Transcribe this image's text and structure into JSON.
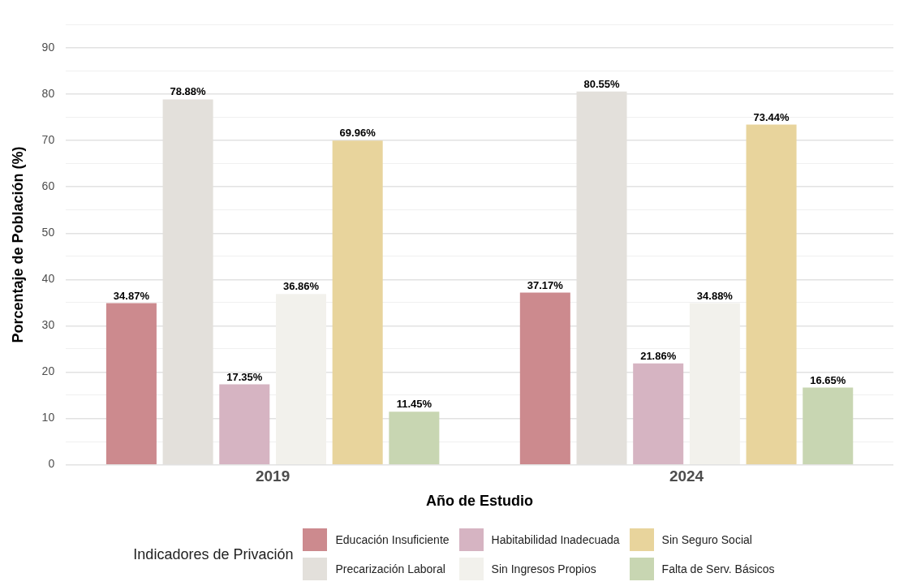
{
  "chart_data": {
    "type": "bar",
    "xlabel": "Año de Estudio",
    "ylabel": "Porcentaje de Población (%)",
    "legend_title": "Indicadores de Privación",
    "categories": [
      "2019",
      "2024"
    ],
    "series": [
      {
        "name": "Educación Insuficiente",
        "color": "#cc8a8e",
        "values": [
          34.87,
          37.17
        ],
        "value_labels": [
          "34.87%",
          "37.17%"
        ]
      },
      {
        "name": "Precarización Laboral",
        "color": "#e3e0db",
        "values": [
          78.88,
          80.55
        ],
        "value_labels": [
          "78.88%",
          "80.55%"
        ]
      },
      {
        "name": "Habitabilidad Inadecuada",
        "color": "#d6b4c2",
        "values": [
          17.35,
          21.86
        ],
        "value_labels": [
          "17.35%",
          "21.86%"
        ]
      },
      {
        "name": "Sin Ingresos Propios",
        "color": "#f2f1ec",
        "values": [
          36.86,
          34.88
        ],
        "value_labels": [
          "36.86%",
          "34.88%"
        ]
      },
      {
        "name": "Sin Seguro Social",
        "color": "#e8d49c",
        "values": [
          69.96,
          73.44
        ],
        "value_labels": [
          "69.96%",
          "73.44%"
        ]
      },
      {
        "name": "Falta de Serv. Básicos",
        "color": "#c8d6b2",
        "values": [
          11.45,
          16.65
        ],
        "value_labels": [
          "11.45%",
          "16.65%"
        ]
      }
    ],
    "ylim": [
      0,
      95
    ],
    "yticks": [
      0,
      {
        "value": 5,
        "label": null
      },
      10,
      {
        "value": 15,
        "label": null
      },
      20,
      {
        "value": 25,
        "label": null
      },
      30,
      {
        "value": 35,
        "label": null
      },
      40,
      {
        "value": 45,
        "label": null
      },
      50,
      {
        "value": 55,
        "label": null
      },
      60,
      {
        "value": 65,
        "label": null
      },
      70,
      {
        "value": 75,
        "label": null
      },
      80,
      {
        "value": 85,
        "label": null
      },
      90,
      {
        "value": 95,
        "label": null
      }
    ],
    "grid": "y",
    "legend": "bottom"
  }
}
